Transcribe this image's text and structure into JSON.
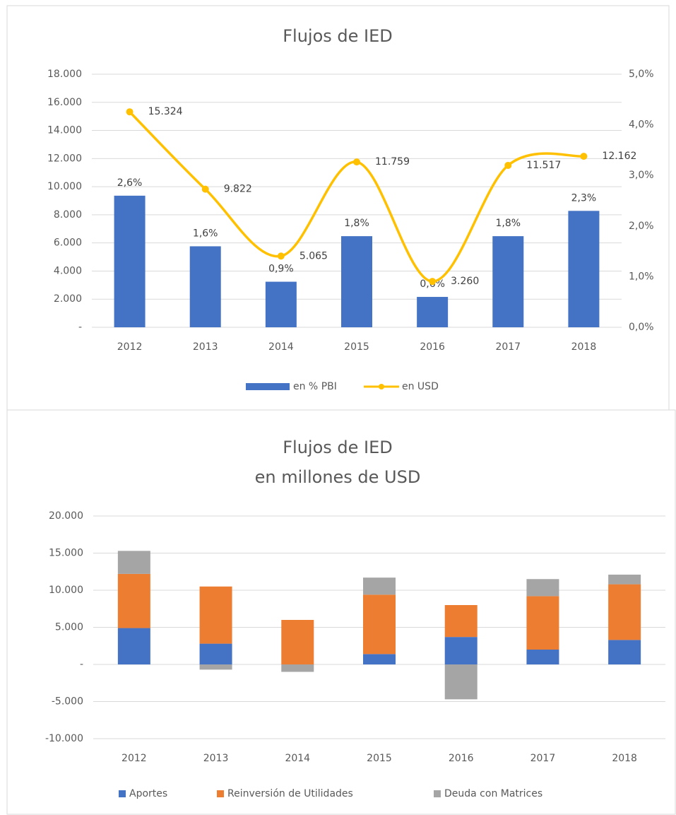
{
  "chart_data": [
    {
      "type": "combo",
      "title": "Flujos de IED",
      "categories": [
        "2012",
        "2013",
        "2014",
        "2015",
        "2016",
        "2017",
        "2018"
      ],
      "series": [
        {
          "name": "en % PBI",
          "type": "bar",
          "axis": "y2",
          "color": "#4472c4",
          "values": [
            2.6,
            1.6,
            0.9,
            1.8,
            0.6,
            1.8,
            2.3
          ],
          "value_labels": [
            "2,6%",
            "1,6%",
            "0,9%",
            "1,8%",
            "0,6%",
            "1,8%",
            "2,3%"
          ]
        },
        {
          "name": "en USD",
          "type": "line",
          "color": "#ffc000",
          "values": [
            15324,
            9822,
            5065,
            11759,
            3260,
            11517,
            12162
          ],
          "value_labels": [
            "15.324",
            "9.822",
            "5.065",
            "11.759",
            "3.260",
            "11.517",
            "12.162"
          ]
        }
      ],
      "ylim": [
        0,
        18000
      ],
      "yticks": [
        {
          "value": 0,
          "label": "-"
        },
        {
          "value": 2000,
          "label": "2.000"
        },
        {
          "value": 4000,
          "label": "4.000"
        },
        {
          "value": 6000,
          "label": "6.000"
        },
        {
          "value": 8000,
          "label": "8.000"
        },
        {
          "value": 10000,
          "label": "10.000"
        },
        {
          "value": 12000,
          "label": "12.000"
        },
        {
          "value": 14000,
          "label": "14.000"
        },
        {
          "value": 16000,
          "label": "16.000"
        },
        {
          "value": 18000,
          "label": "18.000"
        }
      ],
      "y2lim": [
        0,
        5
      ],
      "y2ticks": [
        {
          "value": 0,
          "label": "0,0%"
        },
        {
          "value": 1,
          "label": "1,0%"
        },
        {
          "value": 2,
          "label": "2,0%"
        },
        {
          "value": 3,
          "label": "3,0%"
        },
        {
          "value": 4,
          "label": "4,0%"
        },
        {
          "value": 5,
          "label": "5,0%"
        }
      ],
      "grid": true,
      "legend": "bottom"
    },
    {
      "type": "stacked_bar",
      "title": "Flujos de IED",
      "subtitle": "en millones de USD",
      "categories": [
        "2012",
        "2013",
        "2014",
        "2015",
        "2016",
        "2017",
        "2018"
      ],
      "series": [
        {
          "name": "Aportes",
          "color": "#4472c4",
          "values": [
            4900,
            2800,
            0,
            1400,
            3700,
            2000,
            3300
          ]
        },
        {
          "name": "Reinversión de Utilidades",
          "color": "#ed7d31",
          "values": [
            7300,
            7700,
            6000,
            8000,
            4300,
            7200,
            7500
          ]
        },
        {
          "name": "Deuda con Matrices",
          "color": "#a5a5a5",
          "values": [
            3100,
            -700,
            -1000,
            2300,
            -4700,
            2300,
            1300
          ]
        }
      ],
      "ylim": [
        -10000,
        20000
      ],
      "yticks": [
        {
          "value": -10000,
          "label": "-10.000"
        },
        {
          "value": -5000,
          "label": "-5.000"
        },
        {
          "value": 0,
          "label": "-"
        },
        {
          "value": 5000,
          "label": "5.000"
        },
        {
          "value": 10000,
          "label": "10.000"
        },
        {
          "value": 15000,
          "label": "15.000"
        },
        {
          "value": 20000,
          "label": "20.000"
        }
      ],
      "grid": true,
      "legend": "bottom"
    }
  ]
}
